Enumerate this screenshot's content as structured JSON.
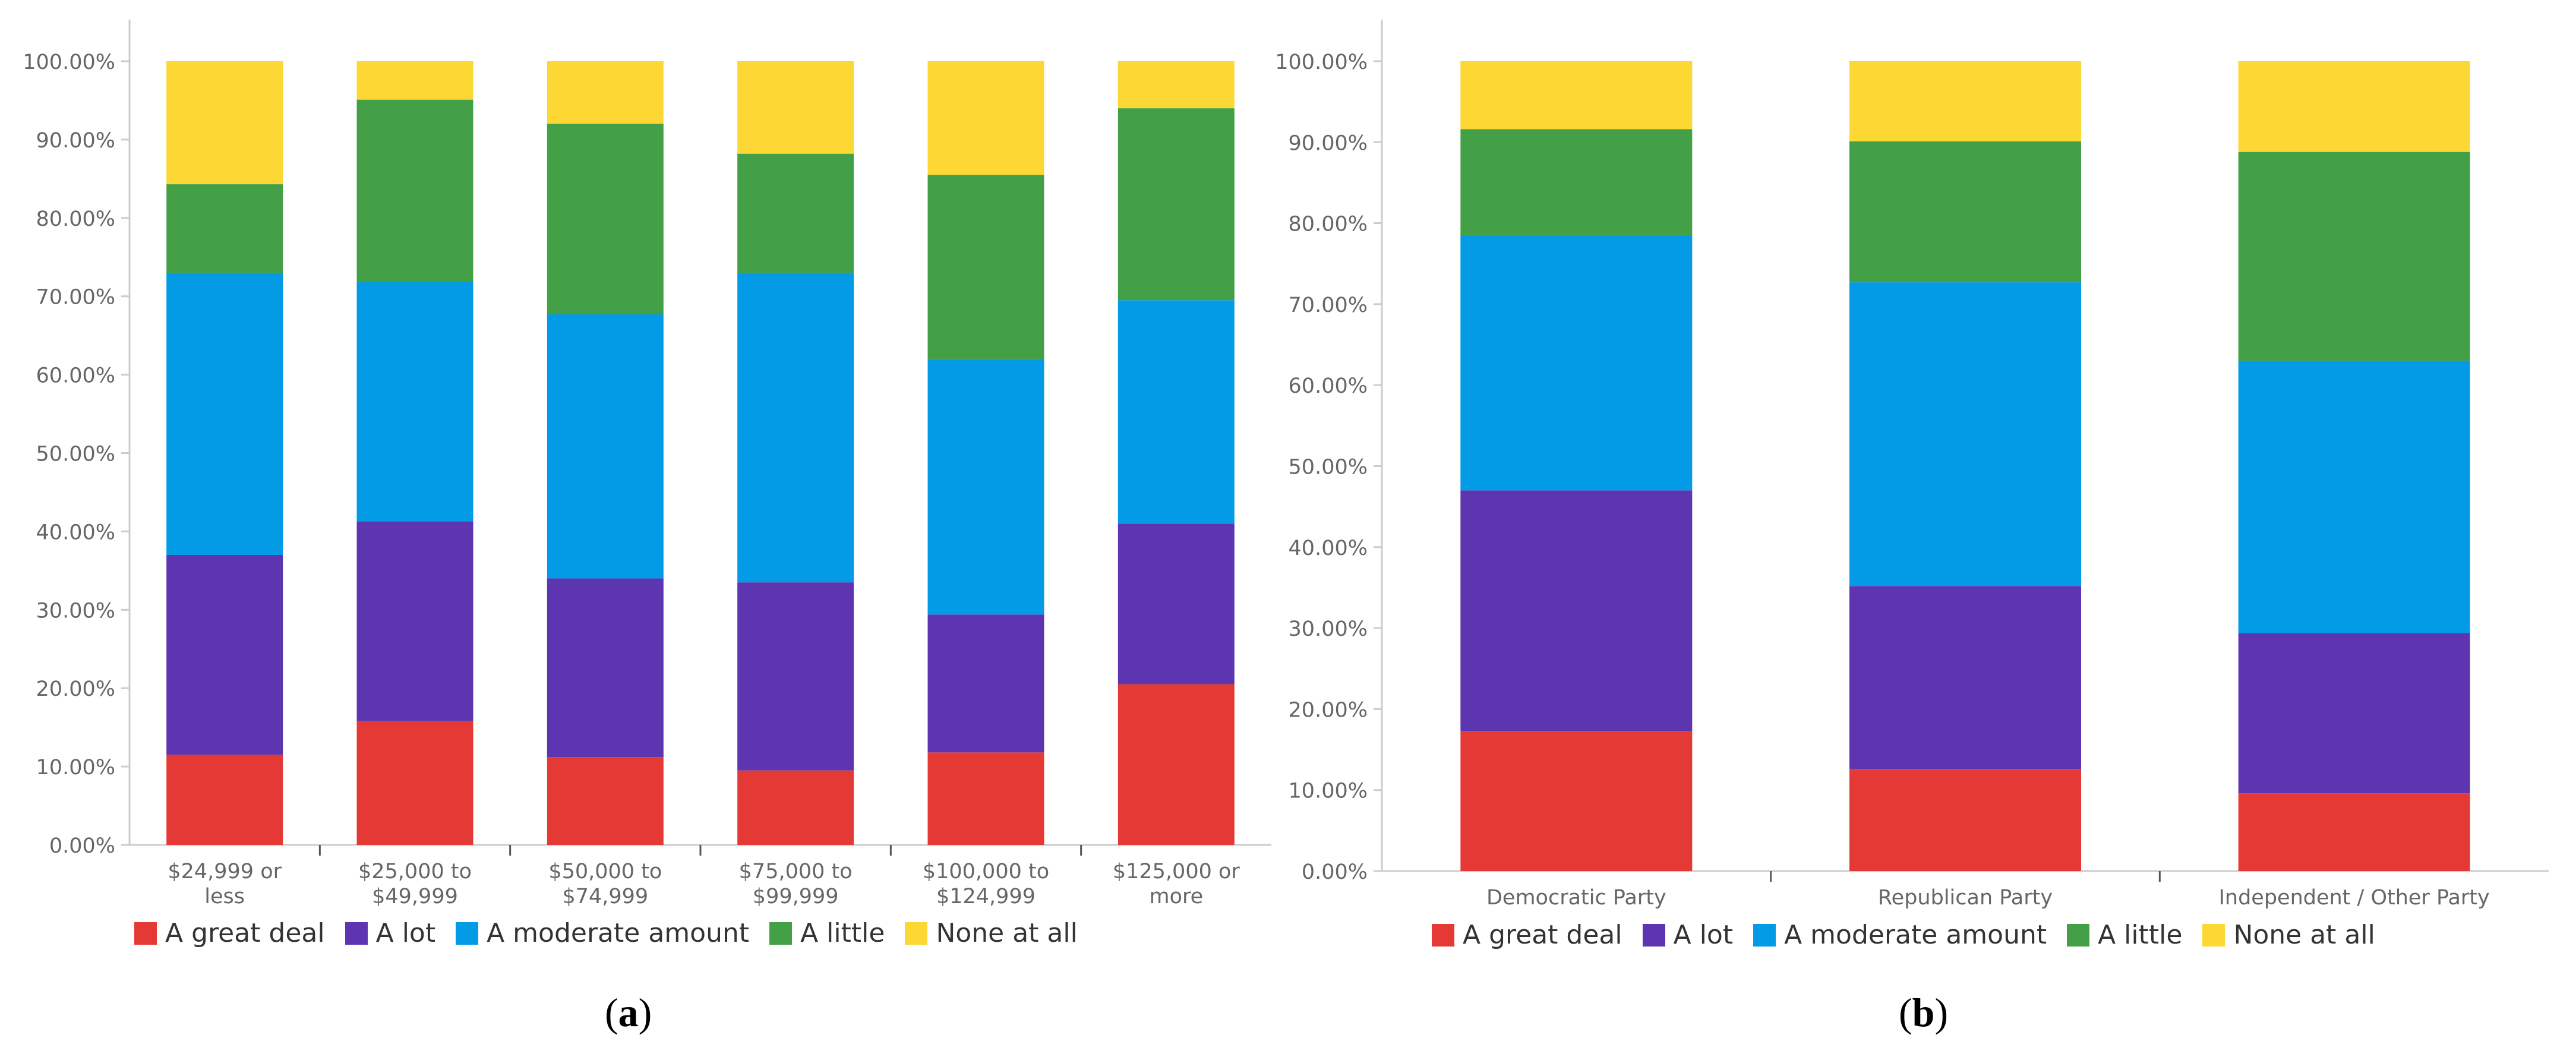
{
  "chart_data": [
    {
      "type": "bar",
      "stacked": true,
      "caption_label": "a",
      "categories": [
        "$24,999 or less",
        "$25,000 to $49,999",
        "$50,000 to $74,999",
        "$75,000 to $99,999",
        "$100,000 to $124,999",
        "$125,000 or more"
      ],
      "category_lines": [
        [
          "$24,999 or",
          "less"
        ],
        [
          "$25,000 to",
          "$49,999"
        ],
        [
          "$50,000 to",
          "$74,999"
        ],
        [
          "$75,000 to",
          "$99,999"
        ],
        [
          "$100,000 to",
          "$124,999"
        ],
        [
          "$125,000 or",
          "more"
        ]
      ],
      "series": [
        {
          "name": "A great deal",
          "color": "#E53935",
          "values": [
            11.5,
            15.8,
            11.2,
            9.5,
            11.8,
            20.5
          ]
        },
        {
          "name": "A lot",
          "color": "#5E35B1",
          "values": [
            25.5,
            25.5,
            22.8,
            24.0,
            17.6,
            20.5
          ]
        },
        {
          "name": "A moderate amount",
          "color": "#039BE5",
          "values": [
            36.0,
            30.5,
            33.7,
            39.5,
            32.6,
            28.5
          ]
        },
        {
          "name": "A little",
          "color": "#43A047",
          "values": [
            11.3,
            23.3,
            24.3,
            15.2,
            23.5,
            24.5
          ]
        },
        {
          "name": "None at all",
          "color": "#FDD835",
          "values": [
            15.7,
            4.9,
            8.0,
            11.8,
            14.5,
            6.0
          ]
        }
      ],
      "y_ticks": [
        "0.00%",
        "10.00%",
        "20.00%",
        "30.00%",
        "40.00%",
        "50.00%",
        "60.00%",
        "70.00%",
        "80.00%",
        "90.00%",
        "100.00%"
      ],
      "ylim": [
        0,
        100
      ]
    },
    {
      "type": "bar",
      "stacked": true,
      "caption_label": "b",
      "categories": [
        "Democratic Party",
        "Republican Party",
        "Independent / Other Party"
      ],
      "category_lines": [
        [
          "Democratic Party"
        ],
        [
          "Republican Party"
        ],
        [
          "Independent / Other Party"
        ]
      ],
      "series": [
        {
          "name": "A great deal",
          "color": "#E53935",
          "values": [
            17.3,
            12.6,
            9.6
          ]
        },
        {
          "name": "A lot",
          "color": "#5E35B1",
          "values": [
            29.7,
            22.6,
            19.8
          ]
        },
        {
          "name": "A moderate amount",
          "color": "#039BE5",
          "values": [
            31.5,
            37.5,
            33.6
          ]
        },
        {
          "name": "A little",
          "color": "#43A047",
          "values": [
            13.1,
            17.4,
            25.8
          ]
        },
        {
          "name": "None at all",
          "color": "#FDD835",
          "values": [
            8.4,
            9.9,
            11.2
          ]
        }
      ],
      "y_ticks": [
        "0.00%",
        "10.00%",
        "20.00%",
        "30.00%",
        "40.00%",
        "50.00%",
        "60.00%",
        "70.00%",
        "80.00%",
        "90.00%",
        "100.00%"
      ],
      "ylim": [
        0,
        100
      ]
    }
  ]
}
